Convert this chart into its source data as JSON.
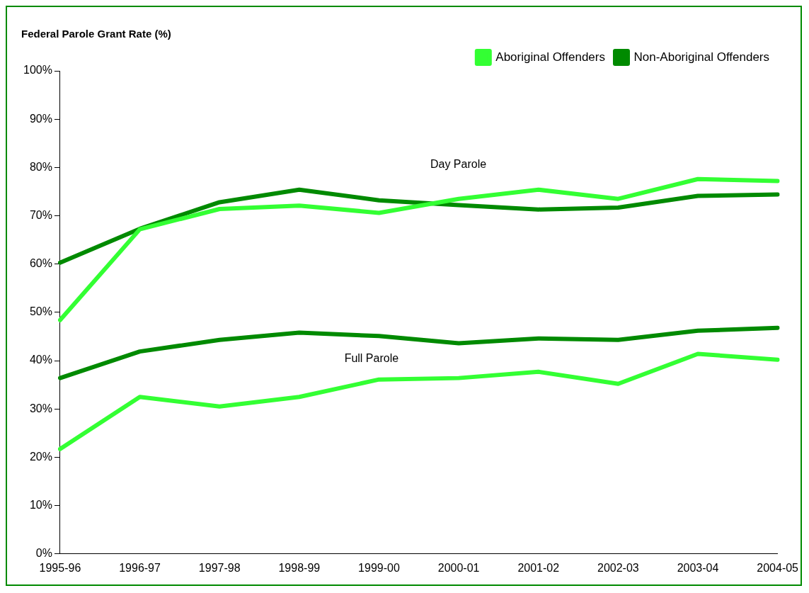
{
  "chart_data": {
    "type": "line",
    "title": "Federal Parole Grant Rate (%)",
    "categories": [
      "1995-96",
      "1996-97",
      "1997-98",
      "1998-99",
      "1999-00",
      "2000-01",
      "2001-02",
      "2002-03",
      "2003-04",
      "2004-05"
    ],
    "series": [
      {
        "name": "Aboriginal Offenders",
        "color": "#33ff33",
        "values": [
          48.4,
          67.2,
          71.4,
          72.1,
          70.6,
          73.5,
          75.4,
          73.5,
          77.6,
          77.2
        ]
      },
      {
        "name": "Non-Aboriginal Offenders",
        "color": "#008a00",
        "values": [
          60.3,
          67.3,
          72.8,
          75.4,
          73.2,
          72.2,
          71.3,
          71.7,
          74.1,
          74.4
        ]
      },
      {
        "color": "#008a00",
        "values": [
          36.4,
          41.9,
          44.3,
          45.8,
          45.1,
          43.6,
          44.6,
          44.3,
          46.2,
          46.8
        ]
      },
      {
        "color": "#33ff33",
        "values": [
          21.7,
          32.5,
          30.5,
          32.5,
          36.1,
          36.4,
          37.7,
          35.2,
          41.4,
          40.2
        ]
      }
    ],
    "ylim": [
      0,
      100
    ],
    "yticks": [
      {
        "value": 0,
        "label": "0%"
      },
      {
        "value": 10,
        "label": "10%"
      },
      {
        "value": 20,
        "label": "20%"
      },
      {
        "value": 30,
        "label": "30%"
      },
      {
        "value": 40,
        "label": "40%"
      },
      {
        "value": 50,
        "label": "50%"
      },
      {
        "value": 60,
        "label": "60%"
      },
      {
        "value": 70,
        "label": "70%"
      },
      {
        "value": 80,
        "label": "80%"
      },
      {
        "value": 90,
        "label": "90%"
      },
      {
        "value": 100,
        "label": "100%"
      }
    ],
    "annotations": [
      "Day Parole",
      "Full Parole"
    ],
    "grid": false,
    "legend": "top right",
    "marker": "none",
    "line_style": "solid"
  }
}
